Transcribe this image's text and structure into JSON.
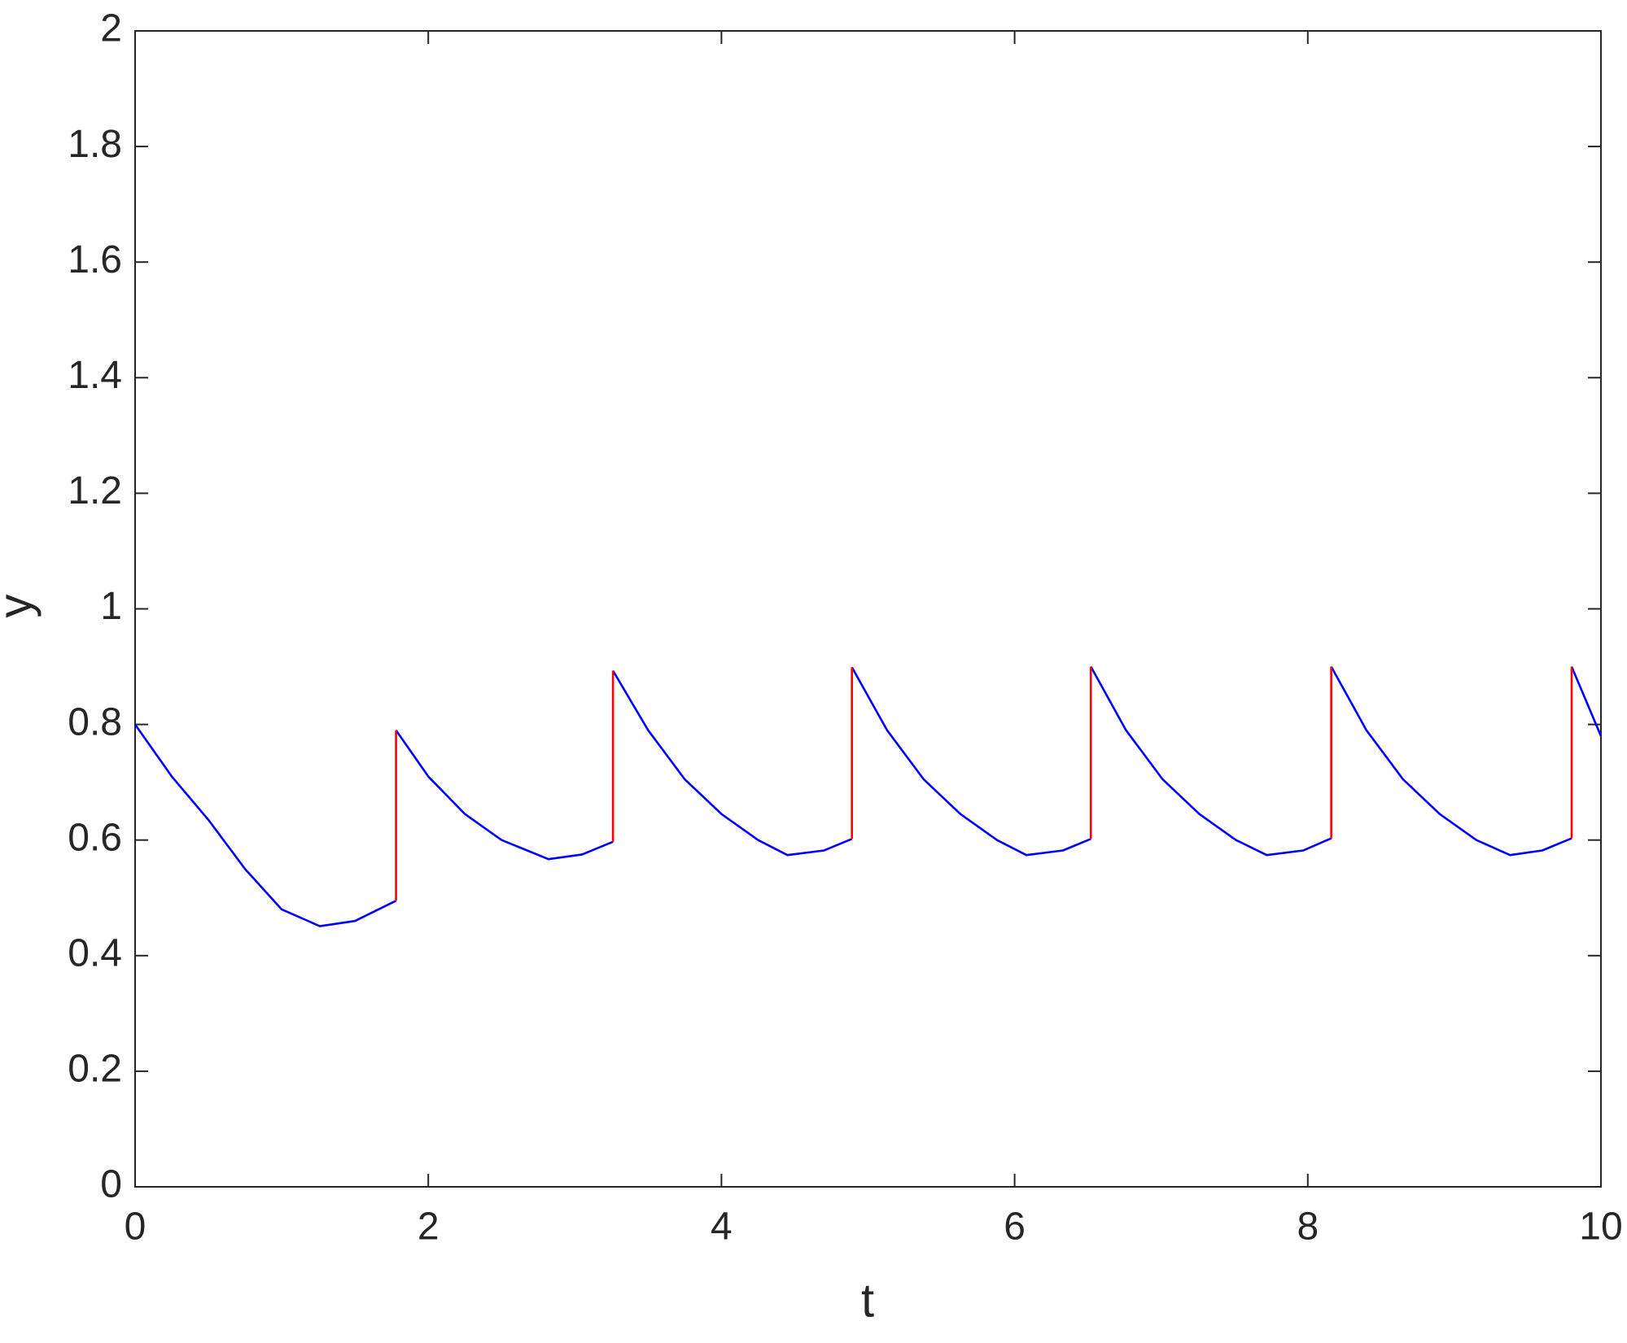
{
  "chart_data": {
    "type": "line",
    "xlabel": "t",
    "ylabel": "y",
    "xlim": [
      0,
      10
    ],
    "ylim": [
      0,
      2
    ],
    "xticks": [
      0,
      2,
      4,
      6,
      8,
      10
    ],
    "yticks": [
      0,
      0.2,
      0.4,
      0.6,
      0.8,
      1,
      1.2,
      1.4,
      1.6,
      1.8,
      2
    ],
    "grid": false,
    "series": [
      {
        "color": "#0000ff",
        "x": [
          0,
          0.25,
          0.5,
          0.75,
          1.0,
          1.26,
          1.5,
          1.78,
          null,
          1.78,
          2.0,
          2.25,
          2.5,
          2.82,
          3.05,
          3.26,
          null,
          3.26,
          3.5,
          3.75,
          4.0,
          4.25,
          4.45,
          4.7,
          4.89,
          null,
          4.89,
          5.13,
          5.38,
          5.63,
          5.88,
          6.08,
          6.33,
          6.52,
          null,
          6.52,
          6.76,
          7.01,
          7.26,
          7.51,
          7.72,
          7.97,
          8.16,
          null,
          8.16,
          8.4,
          8.65,
          8.9,
          9.15,
          9.38,
          9.6,
          9.8,
          null,
          9.8,
          10
        ],
        "values": [
          0.8,
          0.71,
          0.635,
          0.55,
          0.48,
          0.451,
          0.46,
          0.495,
          null,
          0.79,
          0.71,
          0.645,
          0.6,
          0.567,
          0.575,
          0.597,
          null,
          0.893,
          0.79,
          0.705,
          0.645,
          0.6,
          0.574,
          0.582,
          0.602,
          null,
          0.899,
          0.79,
          0.705,
          0.645,
          0.6,
          0.574,
          0.582,
          0.602,
          null,
          0.9,
          0.79,
          0.705,
          0.645,
          0.6,
          0.574,
          0.582,
          0.603,
          null,
          0.9,
          0.79,
          0.705,
          0.645,
          0.6,
          0.574,
          0.582,
          0.603,
          null,
          0.9,
          0.78
        ]
      },
      {
        "color": "#ff0000",
        "x": [
          1.78,
          1.78,
          null,
          3.26,
          3.26,
          null,
          4.89,
          4.89,
          null,
          6.52,
          6.52,
          null,
          8.16,
          8.16,
          null,
          9.8,
          9.8
        ],
        "values": [
          0.495,
          0.79,
          null,
          0.597,
          0.893,
          null,
          0.602,
          0.899,
          null,
          0.602,
          0.9,
          null,
          0.603,
          0.9,
          null,
          0.603,
          0.9
        ]
      }
    ]
  }
}
